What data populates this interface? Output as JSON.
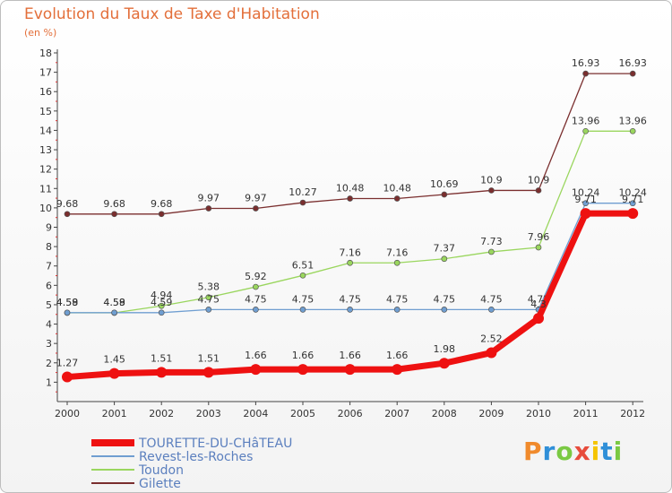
{
  "title": "Evolution du Taux de Taxe d'Habitation",
  "unit": "(en %)",
  "logo": {
    "text": "Proxiti",
    "colors": [
      "#f08a2c",
      "#2f8fd8",
      "#7ac943",
      "#e74c3c",
      "#f5c400",
      "#2f8fd8",
      "#7ac943"
    ]
  },
  "chart_data": {
    "type": "line",
    "x": [
      "2000",
      "2001",
      "2002",
      "2003",
      "2004",
      "2005",
      "2006",
      "2007",
      "2008",
      "2009",
      "2010",
      "2011",
      "2012"
    ],
    "ylim": [
      0,
      18
    ],
    "yticks": [
      "1",
      "2",
      "3",
      "4",
      "5",
      "6",
      "7",
      "8",
      "9",
      "10",
      "11",
      "12",
      "13",
      "14",
      "15",
      "16",
      "17",
      "18"
    ],
    "grid": false,
    "legend_position": "bottom-left",
    "series": [
      {
        "name": "Gilette",
        "color": "#7a2e2e",
        "width": 1.3,
        "values": [
          9.68,
          9.68,
          9.68,
          9.97,
          9.97,
          10.27,
          10.48,
          10.48,
          10.69,
          10.9,
          10.9,
          16.93,
          16.93
        ],
        "labels": [
          "9.68",
          "9.68",
          "9.68",
          "9.97",
          "9.97",
          "10.27",
          "10.48",
          "10.48",
          "10.69",
          "10.9",
          "10.9",
          "16.93",
          "16.93"
        ]
      },
      {
        "name": "Toudon",
        "color": "#9ad65e",
        "width": 1.3,
        "values": [
          4.58,
          4.58,
          4.94,
          5.38,
          5.92,
          6.51,
          7.16,
          7.16,
          7.37,
          7.73,
          7.96,
          13.96,
          13.96
        ],
        "labels": [
          "4.58",
          "4.58",
          "4.94",
          "5.38",
          "5.92",
          "6.51",
          "7.16",
          "7.16",
          "7.37",
          "7.73",
          "7.96",
          "13.96",
          "13.96"
        ]
      },
      {
        "name": "Revest-les-Roches",
        "color": "#6f9ed1",
        "width": 1.3,
        "values": [
          4.59,
          4.59,
          4.59,
          4.75,
          4.75,
          4.75,
          4.75,
          4.75,
          4.75,
          4.75,
          4.75,
          10.24,
          10.24
        ],
        "labels": [
          "4.59",
          "4.59",
          "4.59",
          "4.75",
          "4.75",
          "4.75",
          "4.75",
          "4.75",
          "4.75",
          "4.75",
          "4.75",
          "10.24",
          "10.24"
        ]
      },
      {
        "name": "TOURETTE-DU-CHâTEAU",
        "color": "#ee1111",
        "width": 7,
        "values": [
          1.27,
          1.45,
          1.51,
          1.51,
          1.66,
          1.66,
          1.66,
          1.66,
          1.98,
          2.52,
          4.3,
          9.71,
          9.71
        ],
        "labels": [
          "1.27",
          "1.45",
          "1.51",
          "1.51",
          "1.66",
          "1.66",
          "1.66",
          "1.66",
          "1.98",
          "2.52",
          "4.3",
          "9.71",
          "9.71"
        ]
      }
    ]
  }
}
